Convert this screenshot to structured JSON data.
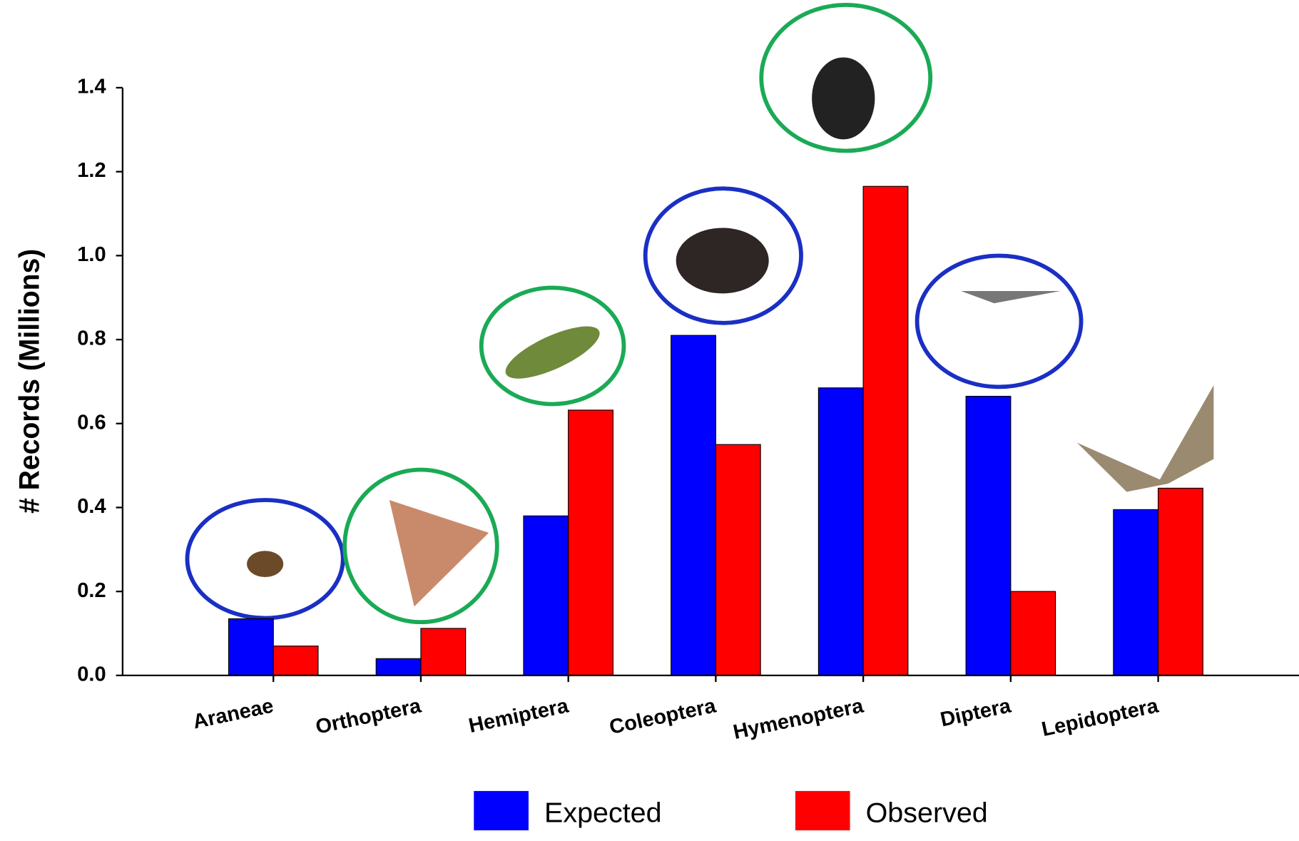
{
  "chart_data": {
    "type": "bar",
    "y_label": "# Records (Millions)",
    "categories": [
      "Araneae",
      "Orthoptera",
      "Hemiptera",
      "Coleoptera",
      "Hymenoptera",
      "Diptera",
      "Lepidoptera"
    ],
    "series": [
      {
        "name": "Expected",
        "color": "#0000ff",
        "values": [
          0.135,
          0.04,
          0.38,
          0.81,
          0.685,
          0.665,
          0.395
        ]
      },
      {
        "name": "Observed",
        "color": "#ff0000",
        "values": [
          0.07,
          0.112,
          0.632,
          0.55,
          1.165,
          0.2,
          0.446
        ]
      }
    ],
    "ylim": [
      0,
      1.4
    ],
    "yticks": [
      {
        "value": 0,
        "label": "0.0"
      },
      0.2,
      0.4,
      0.6,
      0.8,
      {
        "value": 1,
        "label": "1.0"
      },
      1.2,
      1.4
    ]
  }
}
